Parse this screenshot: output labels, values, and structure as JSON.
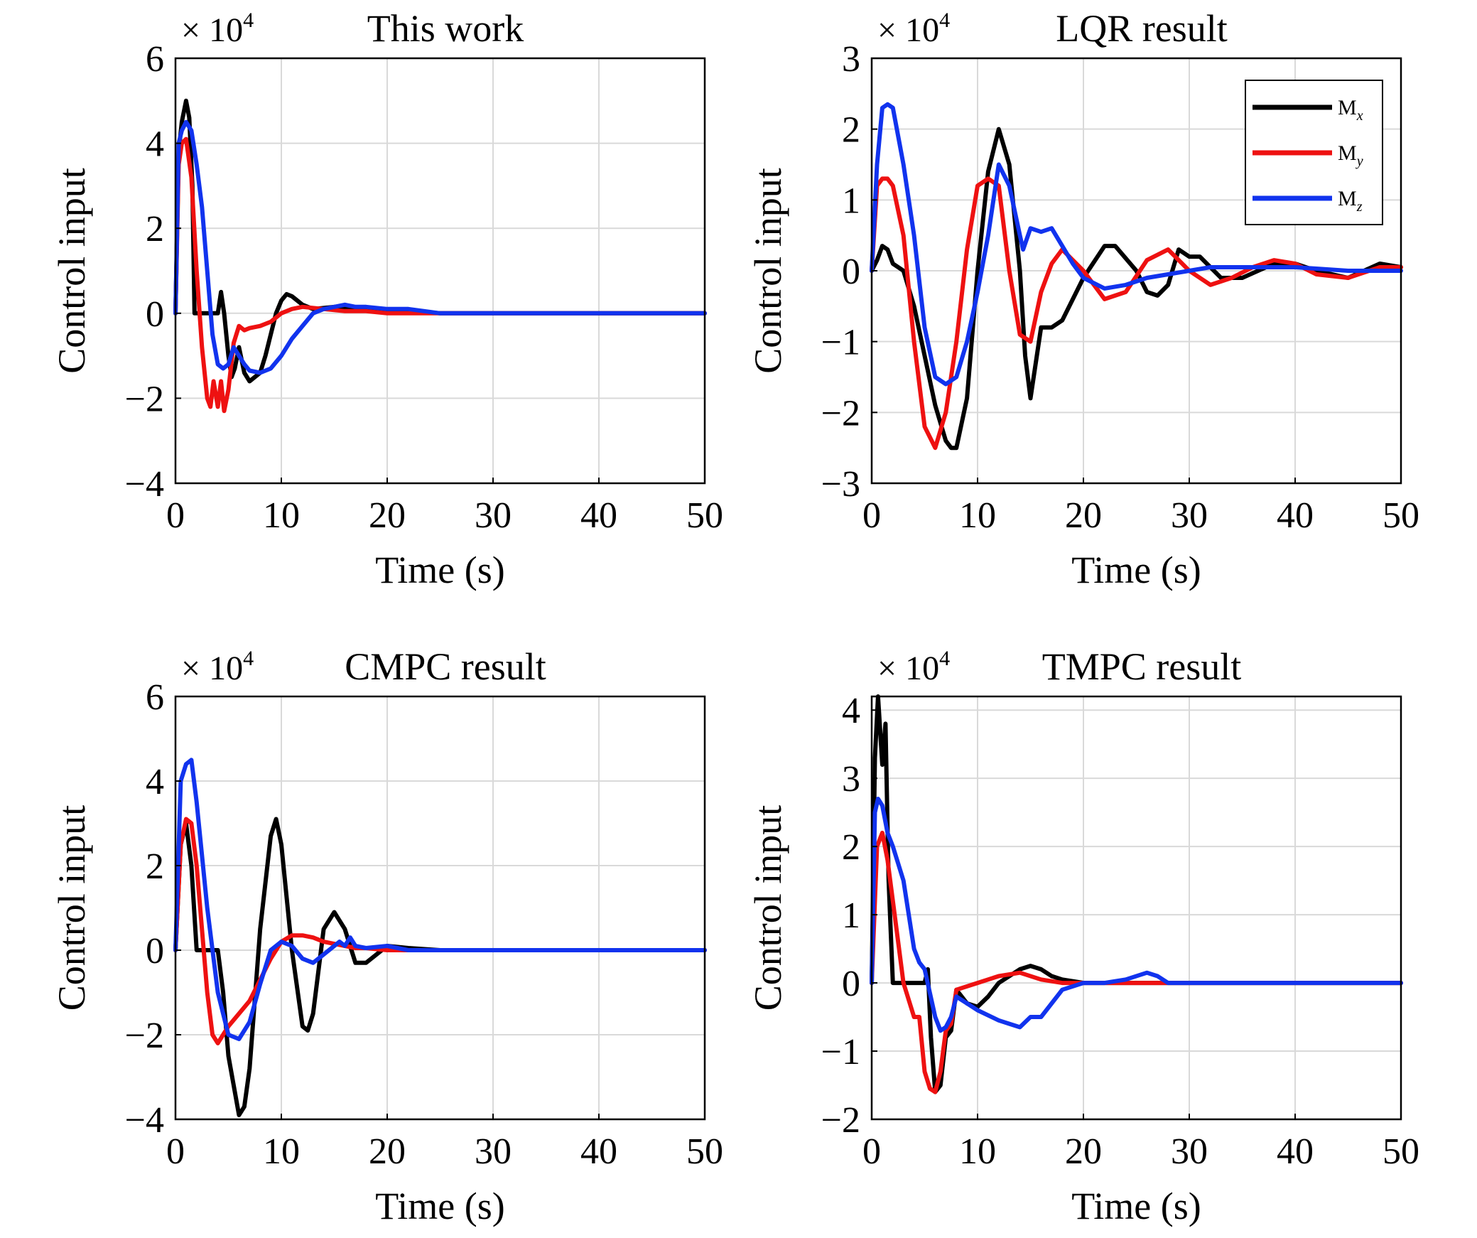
{
  "colors": {
    "Mx": "#000000",
    "My": "#ee1111",
    "Mz": "#1133ee",
    "grid": "#d9d9d9"
  },
  "chart_data": [
    {
      "type": "line",
      "title": "This work",
      "multiplier": "× 10",
      "multiplier_exp": "4",
      "xlabel": "Time (s)",
      "ylabel": "Control input",
      "xlim": [
        0,
        50
      ],
      "ylim": [
        -4,
        6
      ],
      "xticks": [
        0,
        10,
        20,
        30,
        40,
        50
      ],
      "yticks": [
        -4,
        -2,
        0,
        2,
        4,
        6
      ],
      "ytick_labels": [
        "−4",
        "−2",
        "0",
        "2",
        "4",
        "6"
      ],
      "grid": true,
      "series": [
        {
          "name": "Mx",
          "x": [
            0,
            0.3,
            0.6,
            1.0,
            1.3,
            1.6,
            1.8,
            3,
            4,
            4.3,
            4.6,
            5,
            5.3,
            5.6,
            6,
            6.5,
            7,
            8,
            8.5,
            9,
            9.5,
            10,
            10.5,
            11,
            11.5,
            12,
            13,
            15,
            18,
            22,
            25,
            30,
            40,
            50
          ],
          "y": [
            0,
            3.8,
            4.5,
            5.0,
            4.6,
            3.0,
            0,
            0,
            0,
            0.5,
            0,
            -1.0,
            -1.5,
            -1.3,
            -0.8,
            -1.4,
            -1.6,
            -1.4,
            -1.0,
            -0.5,
            0,
            0.3,
            0.45,
            0.4,
            0.3,
            0.2,
            0.1,
            0.15,
            0.1,
            0.05,
            0,
            0,
            0,
            0
          ]
        },
        {
          "name": "My",
          "x": [
            0,
            0.3,
            0.6,
            1.0,
            1.5,
            2,
            2.5,
            3,
            3.3,
            3.6,
            4,
            4.3,
            4.6,
            5,
            5.5,
            6,
            6.5,
            7,
            8,
            9,
            10,
            11,
            12,
            14,
            16,
            18,
            20,
            22,
            25,
            30,
            40,
            50
          ],
          "y": [
            0,
            3.5,
            4.0,
            4.1,
            3.2,
            1.0,
            -0.8,
            -2.0,
            -2.2,
            -1.6,
            -2.2,
            -1.6,
            -2.3,
            -1.8,
            -0.7,
            -0.3,
            -0.4,
            -0.35,
            -0.3,
            -0.2,
            0,
            0.1,
            0.15,
            0.1,
            0.05,
            0.05,
            0,
            0,
            0,
            0,
            0,
            0
          ]
        },
        {
          "name": "Mz",
          "x": [
            0,
            0.3,
            0.6,
            1.0,
            1.5,
            2,
            2.5,
            3,
            3.5,
            4,
            4.5,
            5,
            5.5,
            6,
            6.5,
            7,
            8,
            9,
            10,
            11,
            12,
            13,
            14,
            15,
            16,
            17,
            18,
            20,
            22,
            25,
            30,
            40,
            50
          ],
          "y": [
            0,
            4.0,
            4.3,
            4.5,
            4.3,
            3.5,
            2.5,
            1.0,
            -0.5,
            -1.2,
            -1.3,
            -1.2,
            -0.8,
            -1.0,
            -1.2,
            -1.35,
            -1.4,
            -1.3,
            -1.0,
            -0.6,
            -0.3,
            0,
            0.1,
            0.15,
            0.2,
            0.15,
            0.15,
            0.1,
            0.1,
            0,
            0,
            0,
            0
          ]
        }
      ]
    },
    {
      "type": "line",
      "title": "LQR result",
      "multiplier": "× 10",
      "multiplier_exp": "4",
      "xlabel": "Time (s)",
      "ylabel": "Control input",
      "xlim": [
        0,
        50
      ],
      "ylim": [
        -3,
        3
      ],
      "xticks": [
        0,
        10,
        20,
        30,
        40,
        50
      ],
      "yticks": [
        -3,
        -2,
        -1,
        0,
        1,
        2,
        3
      ],
      "ytick_labels": [
        "−3",
        "−2",
        "−1",
        "0",
        "1",
        "2",
        "3"
      ],
      "grid": true,
      "legend": {
        "position": "top-right",
        "entries": [
          "M",
          "M",
          "M"
        ],
        "subscripts": [
          "x",
          "y",
          "z"
        ]
      },
      "series": [
        {
          "name": "Mx",
          "x": [
            0,
            0.5,
            1,
            1.5,
            2,
            3,
            4,
            5,
            6,
            7,
            7.5,
            8,
            9,
            10,
            11,
            12,
            13,
            14,
            14.5,
            15,
            16,
            17,
            18,
            20,
            22,
            23,
            25,
            26,
            27,
            28,
            29,
            30,
            31,
            33,
            35,
            38,
            40,
            42,
            45,
            48,
            50
          ],
          "y": [
            0,
            0.15,
            0.35,
            0.3,
            0.1,
            0,
            -0.5,
            -1.2,
            -1.9,
            -2.4,
            -2.5,
            -2.5,
            -1.8,
            0,
            1.4,
            2.0,
            1.5,
            0,
            -1.2,
            -1.8,
            -0.8,
            -0.8,
            -0.7,
            -0.1,
            0.35,
            0.35,
            0,
            -0.3,
            -0.35,
            -0.2,
            0.3,
            0.2,
            0.2,
            -0.1,
            -0.1,
            0.1,
            0.1,
            0,
            -0.1,
            0.1,
            0.05
          ]
        },
        {
          "name": "My",
          "x": [
            0,
            0.5,
            1,
            1.5,
            2,
            3,
            4,
            5,
            6,
            7,
            8,
            9,
            10,
            11,
            12,
            13,
            14,
            15,
            16,
            17,
            18,
            20,
            22,
            24,
            26,
            28,
            30,
            32,
            34,
            36,
            38,
            40,
            42,
            45,
            48,
            50
          ],
          "y": [
            0,
            1.2,
            1.3,
            1.3,
            1.2,
            0.5,
            -1.0,
            -2.2,
            -2.5,
            -2.0,
            -1.0,
            0.3,
            1.2,
            1.3,
            1.2,
            0,
            -0.9,
            -1.0,
            -0.3,
            0.1,
            0.3,
            0,
            -0.4,
            -0.3,
            0.15,
            0.3,
            0,
            -0.2,
            -0.1,
            0.05,
            0.15,
            0.1,
            -0.05,
            -0.1,
            0.05,
            0.05
          ]
        },
        {
          "name": "Mz",
          "x": [
            0,
            0.5,
            1,
            1.5,
            2,
            3,
            4,
            5,
            6,
            7,
            8,
            9,
            10,
            11,
            12,
            13,
            14,
            14.3,
            15,
            16,
            17,
            18,
            19,
            20,
            22,
            24,
            26,
            28,
            30,
            32,
            34,
            36,
            38,
            40,
            45,
            50
          ],
          "y": [
            0,
            1.5,
            2.3,
            2.35,
            2.3,
            1.5,
            0.5,
            -0.8,
            -1.5,
            -1.6,
            -1.5,
            -1.0,
            -0.3,
            0.5,
            1.5,
            1.2,
            0.5,
            0.3,
            0.6,
            0.55,
            0.6,
            0.35,
            0.1,
            -0.1,
            -0.25,
            -0.2,
            -0.1,
            -0.05,
            0,
            0.05,
            0.05,
            0.05,
            0.05,
            0.05,
            0,
            0
          ]
        }
      ]
    },
    {
      "type": "line",
      "title": "CMPC result",
      "multiplier": "× 10",
      "multiplier_exp": "4",
      "xlabel": "Time (s)",
      "ylabel": "Control input",
      "xlim": [
        0,
        50
      ],
      "ylim": [
        -4,
        6
      ],
      "xticks": [
        0,
        10,
        20,
        30,
        40,
        50
      ],
      "yticks": [
        -4,
        -2,
        0,
        2,
        4,
        6
      ],
      "ytick_labels": [
        "−4",
        "−2",
        "0",
        "2",
        "4",
        "6"
      ],
      "grid": true,
      "series": [
        {
          "name": "Mx",
          "x": [
            0,
            0.5,
            1,
            1.5,
            2,
            3,
            4,
            4.5,
            5,
            6,
            6.5,
            7,
            8,
            9,
            9.5,
            10,
            11,
            12,
            12.5,
            13,
            14,
            15,
            15.5,
            16,
            17,
            18,
            20,
            22,
            25,
            30,
            40,
            50
          ],
          "y": [
            0,
            2.5,
            3.0,
            2.0,
            0,
            0,
            0,
            -1.0,
            -2.5,
            -3.9,
            -3.7,
            -2.8,
            0.5,
            2.7,
            3.1,
            2.5,
            0,
            -1.8,
            -1.9,
            -1.5,
            0.5,
            0.9,
            0.7,
            0.5,
            -0.3,
            -0.3,
            0.1,
            0.05,
            0,
            0,
            0,
            0
          ]
        },
        {
          "name": "My",
          "x": [
            0,
            0.5,
            1,
            1.5,
            2,
            3,
            3.5,
            4,
            5,
            6,
            7,
            8,
            9,
            10,
            11,
            12,
            13,
            14,
            15,
            16,
            17,
            18,
            20,
            22,
            25,
            30,
            40,
            50
          ],
          "y": [
            0,
            2.5,
            3.1,
            3.0,
            2.0,
            -1.0,
            -2.0,
            -2.2,
            -1.8,
            -1.5,
            -1.2,
            -0.7,
            -0.2,
            0.2,
            0.35,
            0.35,
            0.3,
            0.2,
            0.15,
            0.1,
            0.05,
            0.05,
            0,
            0,
            0,
            0,
            0,
            0
          ]
        },
        {
          "name": "Mz",
          "x": [
            0,
            0.5,
            1,
            1.5,
            2,
            3,
            4,
            5,
            6,
            7,
            8,
            9,
            10,
            11,
            12,
            13,
            14,
            15,
            15.5,
            16,
            16.5,
            17,
            18,
            20,
            22,
            25,
            30,
            40,
            50
          ],
          "y": [
            0,
            4.0,
            4.4,
            4.5,
            3.5,
            1.0,
            -1.0,
            -2.0,
            -2.1,
            -1.7,
            -0.8,
            0,
            0.2,
            0.1,
            -0.2,
            -0.3,
            -0.1,
            0.1,
            0.2,
            0.1,
            0.3,
            0.1,
            0.05,
            0.1,
            0,
            0,
            0,
            0,
            0
          ]
        }
      ]
    },
    {
      "type": "line",
      "title": "TMPC result",
      "multiplier": "× 10",
      "multiplier_exp": "4",
      "xlabel": "Time (s)",
      "ylabel": "Control input",
      "xlim": [
        0,
        50
      ],
      "ylim": [
        -2,
        4.2
      ],
      "xticks": [
        0,
        10,
        20,
        30,
        40,
        50
      ],
      "yticks": [
        -2,
        -1,
        0,
        1,
        2,
        3,
        4
      ],
      "ytick_labels": [
        "−2",
        "−1",
        "0",
        "1",
        "2",
        "3",
        "4"
      ],
      "grid": true,
      "series": [
        {
          "name": "Mx",
          "x": [
            0,
            0.3,
            0.6,
            1.0,
            1.3,
            1.6,
            2,
            2.2,
            3,
            4,
            5,
            5.3,
            5.6,
            6,
            6.5,
            7,
            7.5,
            8,
            9,
            10,
            11,
            12,
            13,
            14,
            15,
            16,
            17,
            18,
            20,
            25,
            30,
            40,
            50
          ],
          "y": [
            0,
            3.3,
            4.2,
            3.2,
            3.8,
            1.5,
            0,
            0,
            0,
            0,
            0,
            0.2,
            -0.8,
            -1.6,
            -1.5,
            -0.8,
            -0.7,
            -0.1,
            -0.3,
            -0.35,
            -0.2,
            0,
            0.1,
            0.2,
            0.25,
            0.2,
            0.1,
            0.05,
            0,
            0,
            0,
            0,
            0
          ]
        },
        {
          "name": "My",
          "x": [
            0,
            0.5,
            1,
            1.5,
            2,
            3,
            4,
            4.5,
            5,
            5.5,
            6,
            6.5,
            7,
            7.5,
            8,
            10,
            12,
            14,
            16,
            18,
            20,
            25,
            30,
            40,
            50
          ],
          "y": [
            0,
            2.0,
            2.2,
            1.8,
            1.2,
            0,
            -0.5,
            -0.5,
            -1.3,
            -1.55,
            -1.6,
            -1.3,
            -0.7,
            -0.6,
            -0.1,
            0,
            0.1,
            0.15,
            0.05,
            0,
            0,
            0,
            0,
            0,
            0
          ]
        },
        {
          "name": "Mz",
          "x": [
            0,
            0.3,
            0.6,
            1.0,
            1.5,
            2,
            3,
            4,
            4.5,
            5,
            6,
            6.5,
            7,
            7.5,
            8,
            9,
            10,
            12,
            13,
            14,
            15,
            16,
            17,
            18,
            20,
            22,
            24,
            26,
            27,
            28,
            30,
            40,
            50
          ],
          "y": [
            0,
            2.5,
            2.7,
            2.6,
            2.2,
            2.0,
            1.5,
            0.5,
            0.3,
            0.2,
            -0.5,
            -0.7,
            -0.65,
            -0.5,
            -0.2,
            -0.3,
            -0.4,
            -0.55,
            -0.6,
            -0.65,
            -0.5,
            -0.5,
            -0.3,
            -0.1,
            0,
            0,
            0.05,
            0.15,
            0.1,
            0,
            0,
            0,
            0
          ]
        }
      ]
    }
  ]
}
